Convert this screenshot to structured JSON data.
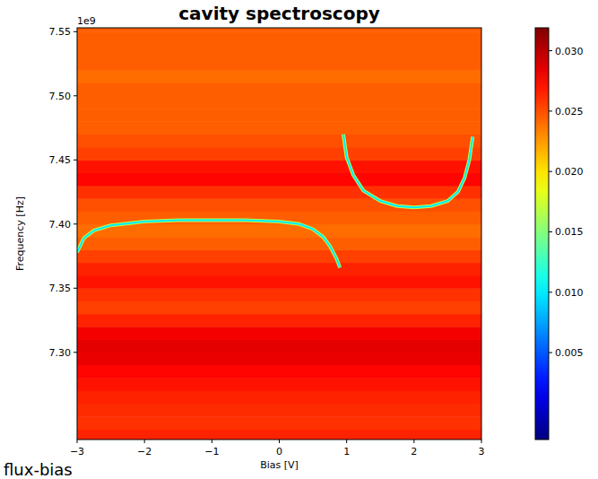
{
  "chart_data": {
    "type": "heatmap",
    "title": "cavity spectroscopy",
    "x_label": "Bias [V]",
    "y_label": "Frequency [Hz]",
    "y_offset": "1e9",
    "caption": "flux-bias",
    "xlim": [
      -3,
      3
    ],
    "ylim": [
      7232000000,
      7553000000
    ],
    "xticks": [
      {
        "value": -3,
        "label": "−3"
      },
      {
        "value": -2,
        "label": "−2"
      },
      {
        "value": -1,
        "label": "−1"
      },
      0,
      1,
      2,
      3
    ],
    "yticks": [
      {
        "value": 7300000000,
        "label": "7.30"
      },
      {
        "value": 7350000000,
        "label": "7.35"
      },
      {
        "value": 7400000000,
        "label": "7.40"
      },
      {
        "value": 7450000000,
        "label": "7.45"
      },
      {
        "value": 7500000000,
        "label": "7.50"
      },
      {
        "value": 7550000000,
        "label": "7.55"
      }
    ],
    "x_bins": [
      -3,
      3
    ],
    "y_bins": [
      7230000000,
      7240000000,
      7250000000,
      7260000000,
      7270000000,
      7280000000,
      7290000000,
      7300000000,
      7310000000,
      7320000000,
      7330000000,
      7340000000,
      7350000000,
      7360000000,
      7370000000,
      7380000000,
      7390000000,
      7400000000,
      7410000000,
      7420000000,
      7430000000,
      7440000000,
      7450000000,
      7460000000,
      7470000000,
      7480000000,
      7490000000,
      7500000000,
      7510000000,
      7520000000,
      7530000000,
      7540000000,
      7550000000,
      7560000000
    ],
    "cells": [
      [
        0.0265
      ],
      [
        0.026
      ],
      [
        0.0262
      ],
      [
        0.0265
      ],
      [
        0.027
      ],
      [
        0.0275
      ],
      [
        0.0283
      ],
      [
        0.0285
      ],
      [
        0.028
      ],
      [
        0.0265
      ],
      [
        0.0255
      ],
      [
        0.026
      ],
      [
        0.027
      ],
      [
        0.0265
      ],
      [
        0.0255
      ],
      [
        0.0245
      ],
      [
        0.024
      ],
      [
        0.0245
      ],
      [
        0.025
      ],
      [
        0.026
      ],
      [
        0.0275
      ],
      [
        0.027
      ],
      [
        0.0255
      ],
      [
        0.025
      ],
      [
        0.0245
      ],
      [
        0.0245
      ],
      [
        0.0245
      ],
      [
        0.0245
      ],
      [
        0.024
      ],
      [
        0.0245
      ],
      [
        0.0245
      ],
      [
        0.0245
      ],
      [
        0.0245
      ]
    ],
    "series": [
      {
        "x": [
          -3,
          -2.9,
          -2.75,
          -2.5,
          -2,
          -1.5,
          -1,
          -0.5,
          0,
          0.3,
          0.5,
          0.65,
          0.75,
          0.85,
          0.9,
          0.92,
          0.95,
          1.0,
          1.1,
          1.25,
          1.5,
          1.75,
          2.0,
          2.25,
          2.5,
          2.65,
          2.75,
          2.82,
          2.87
        ],
        "values": [
          7378000000,
          7389000000,
          7395000000,
          7399000000,
          7402000000,
          7403000000,
          7403000000,
          7403000000,
          7402000000,
          7400000000,
          7396000000,
          7390000000,
          7383000000,
          7373000000,
          7366000000,
          null,
          7470000000,
          7452000000,
          7438000000,
          7426000000,
          7418000000,
          7414000000,
          7413000000,
          7414000000,
          7418000000,
          7425000000,
          7436000000,
          7450000000,
          7468000000
        ],
        "level": 0.01
      }
    ],
    "colorbar": {
      "lim": [
        -0.0022,
        0.0319
      ],
      "ticks": [
        0.005,
        {
          "value": 0.01,
          "label": "0.010"
        },
        0.015,
        {
          "value": 0.02,
          "label": "0.020"
        },
        0.025,
        {
          "value": 0.03,
          "label": "0.030"
        }
      ]
    }
  }
}
